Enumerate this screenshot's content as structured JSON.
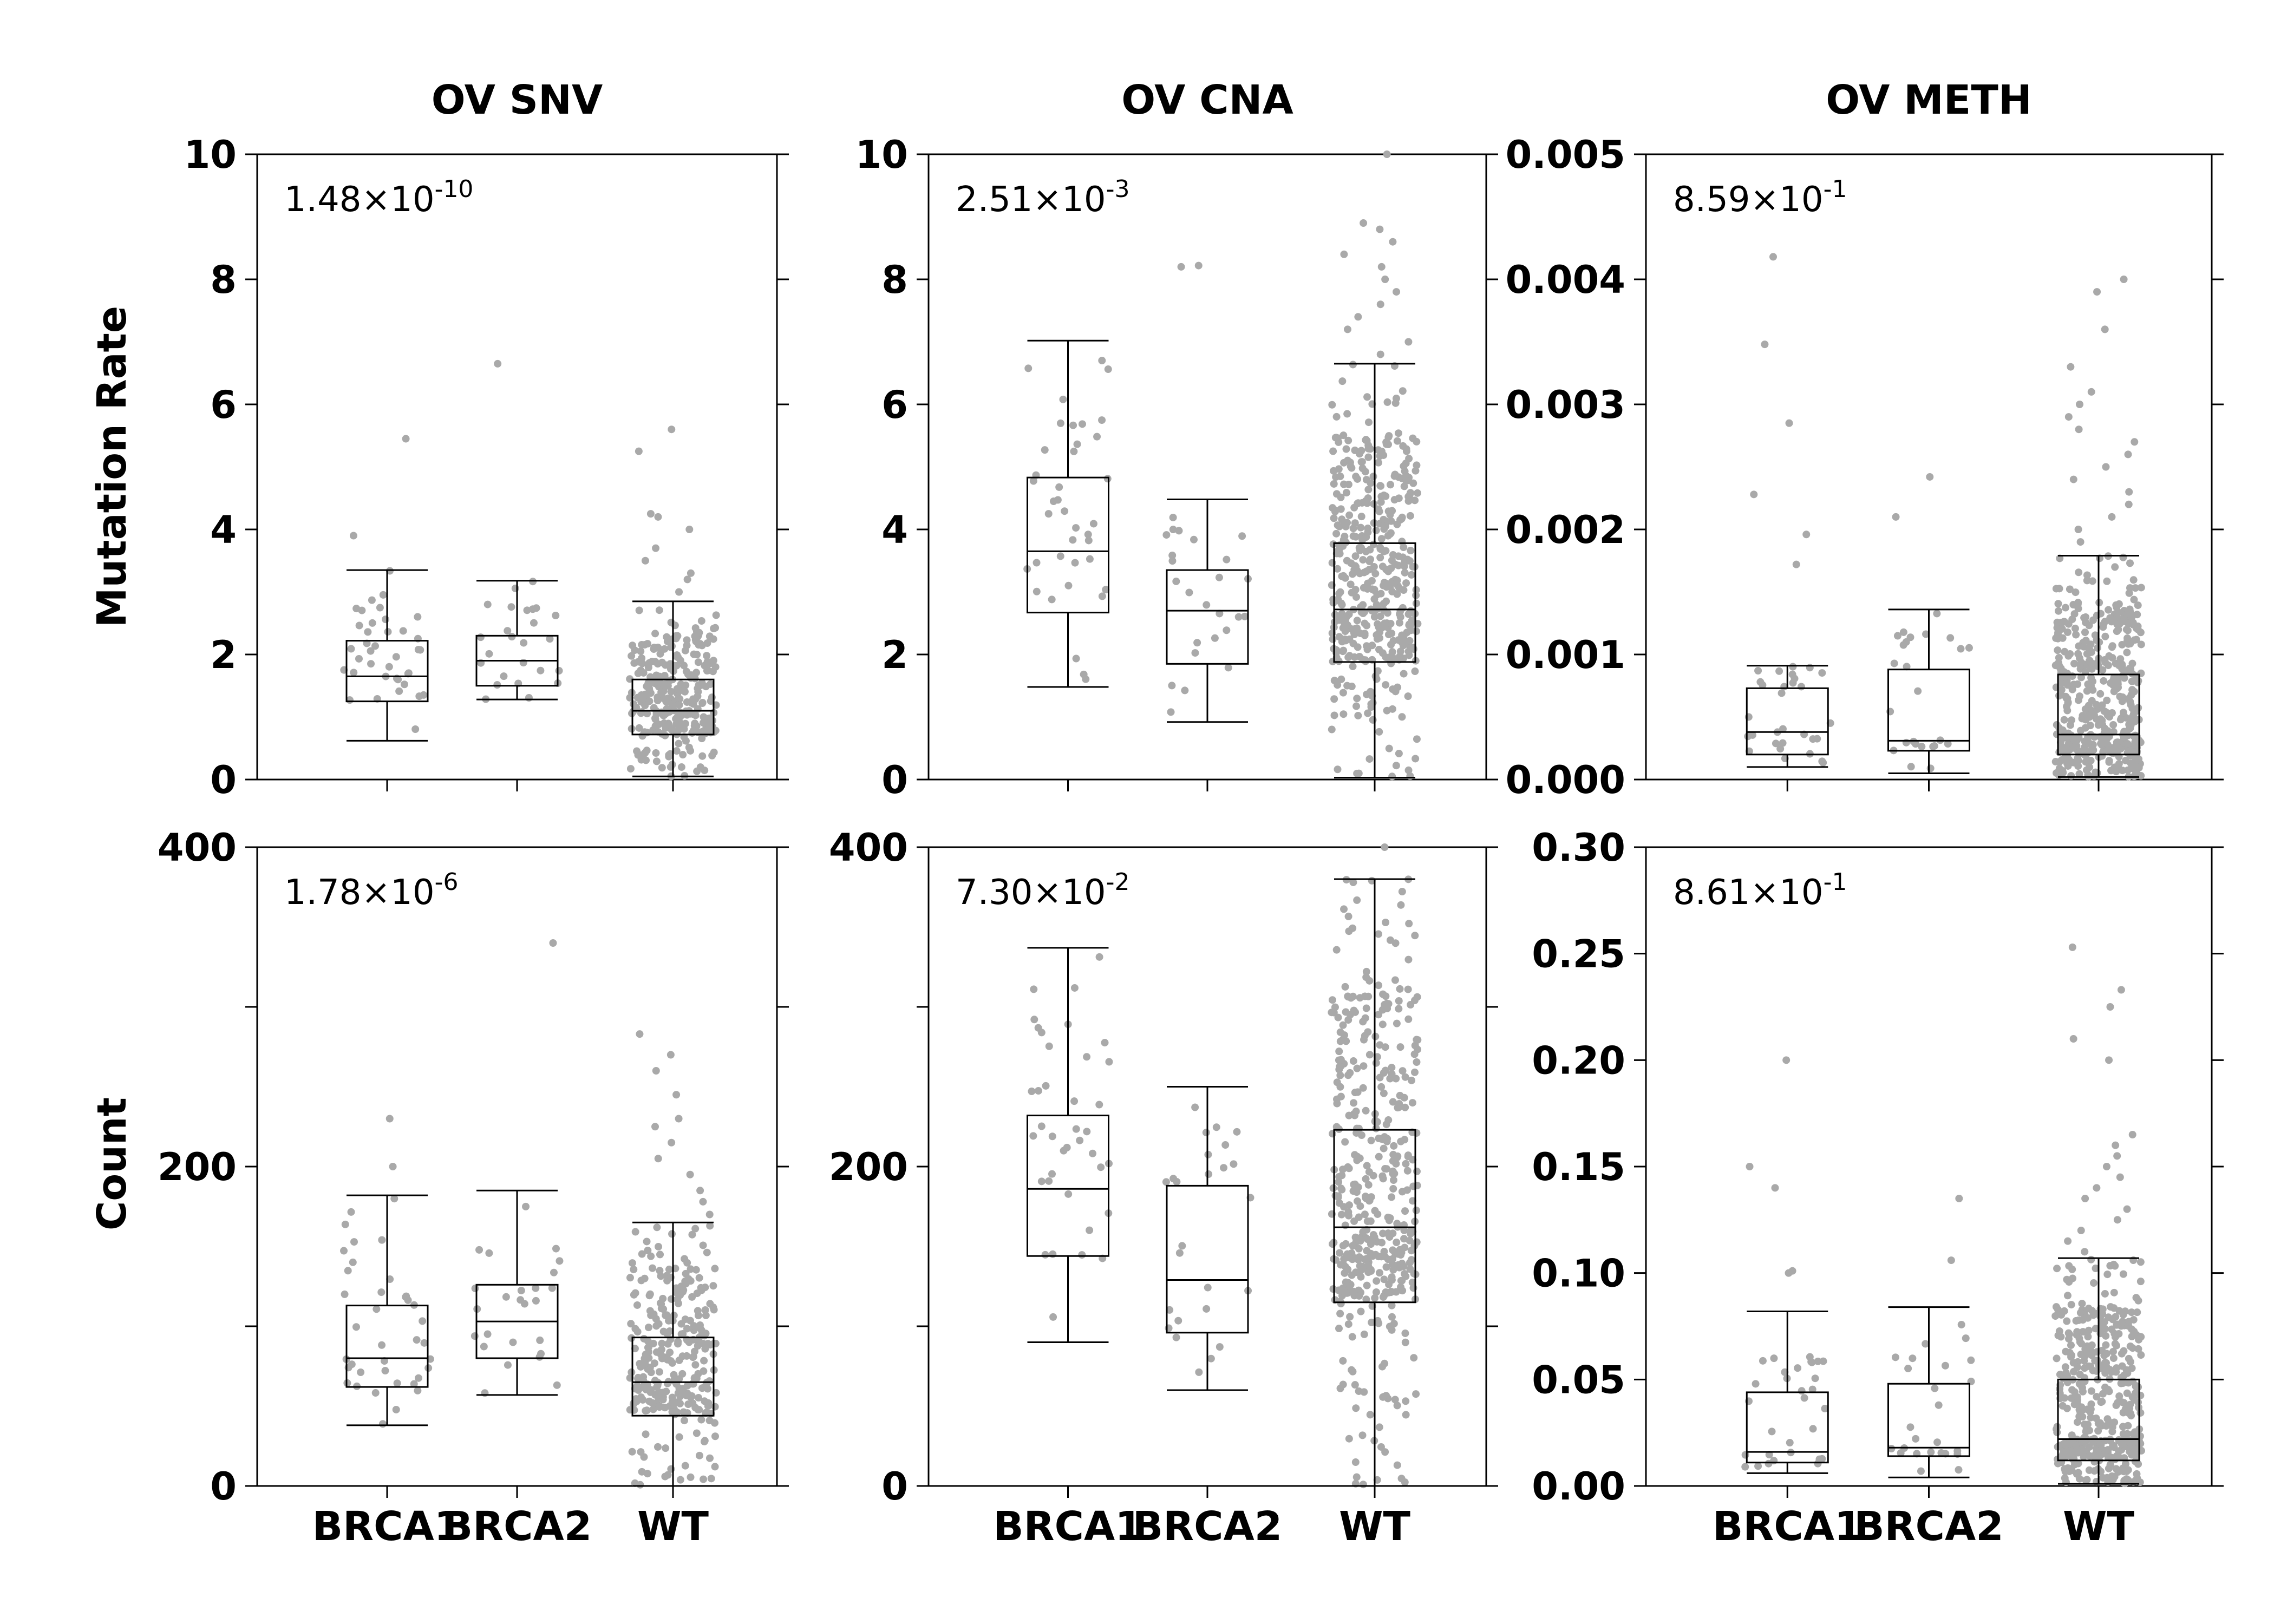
{
  "row_labels": [
    "Mutation Rate",
    "Count"
  ],
  "chart_data": [
    {
      "type": "box",
      "title": "OV SNV",
      "ylabel": "Mutation Rate",
      "annotation": "1.48×10-10",
      "pvalue": {
        "mantissa": "1.48",
        "exponent": "-10"
      },
      "ylim": [
        0,
        10
      ],
      "yticks": [
        "0",
        "2",
        "4",
        "6",
        "8",
        "10"
      ],
      "show_xticklabels": false,
      "categories": [
        "BRCA1",
        "BRCA2",
        "WT"
      ],
      "series": [
        {
          "category": "BRCA1",
          "whisker_low": 0.62,
          "q1": 1.25,
          "median": 1.65,
          "q3": 2.22,
          "whisker_high": 3.35,
          "n": 38,
          "outliers": [
            3.9,
            5.45
          ]
        },
        {
          "category": "BRCA2",
          "whisker_low": 1.28,
          "q1": 1.5,
          "median": 1.9,
          "q3": 2.3,
          "whisker_high": 3.18,
          "n": 25,
          "outliers": [
            6.65
          ]
        },
        {
          "category": "WT",
          "whisker_low": 0.05,
          "q1": 0.72,
          "median": 1.1,
          "q3": 1.6,
          "whisker_high": 2.85,
          "n": 300,
          "outliers": [
            3.0,
            3.2,
            3.3,
            3.5,
            3.7,
            4.0,
            4.2,
            4.25,
            5.25,
            5.6
          ]
        }
      ]
    },
    {
      "type": "box",
      "title": "OV CNA",
      "ylabel": "",
      "annotation": "2.51×10-3",
      "pvalue": {
        "mantissa": "2.51",
        "exponent": "-3"
      },
      "ylim": [
        0,
        10
      ],
      "yticks": [
        "0",
        "2",
        "4",
        "6",
        "8",
        "10"
      ],
      "show_xticklabels": false,
      "categories": [
        "BRCA1",
        "BRCA2",
        "WT"
      ],
      "series": [
        {
          "category": "BRCA1",
          "whisker_low": 1.48,
          "q1": 2.67,
          "median": 3.65,
          "q3": 4.83,
          "whisker_high": 7.02,
          "n": 38,
          "outliers": []
        },
        {
          "category": "BRCA2",
          "whisker_low": 0.92,
          "q1": 1.85,
          "median": 2.7,
          "q3": 3.35,
          "whisker_high": 4.48,
          "n": 25,
          "outliers": [
            8.2,
            8.22
          ]
        },
        {
          "category": "WT",
          "whisker_low": 0.03,
          "q1": 1.88,
          "median": 2.72,
          "q3": 3.78,
          "whisker_high": 6.65,
          "n": 450,
          "outliers": [
            6.8,
            7.0,
            7.2,
            7.4,
            7.6,
            7.8,
            8.0,
            8.2,
            8.4,
            8.6,
            8.8,
            8.9,
            10.0
          ]
        }
      ]
    },
    {
      "type": "box",
      "title": "OV METH",
      "ylabel": "",
      "annotation": "8.59×10-1",
      "pvalue": {
        "mantissa": "8.59",
        "exponent": "-1"
      },
      "ylim": [
        0,
        0.005
      ],
      "yticks": [
        "0.000",
        "0.001",
        "0.002",
        "0.003",
        "0.004",
        "0.005"
      ],
      "show_xticklabels": false,
      "categories": [
        "BRCA1",
        "BRCA2",
        "WT"
      ],
      "series": [
        {
          "category": "BRCA1",
          "whisker_low": 0.0001,
          "q1": 0.0002,
          "median": 0.00038,
          "q3": 0.00073,
          "whisker_high": 0.00091,
          "n": 30,
          "outliers": [
            0.00172,
            0.00196,
            0.00228,
            0.00285,
            0.00348,
            0.00418
          ]
        },
        {
          "category": "BRCA2",
          "whisker_low": 5e-05,
          "q1": 0.00023,
          "median": 0.00031,
          "q3": 0.00088,
          "whisker_high": 0.00136,
          "n": 25,
          "outliers": [
            0.0021,
            0.00242
          ]
        },
        {
          "category": "WT",
          "whisker_low": 2e-05,
          "q1": 0.0002,
          "median": 0.00036,
          "q3": 0.00084,
          "whisker_high": 0.00179,
          "n": 450,
          "outliers": [
            0.0019,
            0.002,
            0.0021,
            0.0022,
            0.0023,
            0.0024,
            0.0025,
            0.0026,
            0.0027,
            0.0028,
            0.0029,
            0.003,
            0.0031,
            0.0033,
            0.0036,
            0.0039,
            0.004
          ]
        }
      ]
    },
    {
      "type": "box",
      "title": "",
      "ylabel": "Count",
      "annotation": "1.78×10-6",
      "pvalue": {
        "mantissa": "1.78",
        "exponent": "-6"
      },
      "ylim": [
        0,
        400
      ],
      "yticks": [
        "0",
        "",
        "200",
        "",
        "400"
      ],
      "show_xticklabels": true,
      "categories": [
        "BRCA1",
        "BRCA2",
        "WT"
      ],
      "series": [
        {
          "category": "BRCA1",
          "whisker_low": 38,
          "q1": 62,
          "median": 80,
          "q3": 113,
          "whisker_high": 182,
          "n": 38,
          "outliers": [
            200,
            230
          ]
        },
        {
          "category": "BRCA2",
          "whisker_low": 57,
          "q1": 80,
          "median": 103,
          "q3": 126,
          "whisker_high": 185,
          "n": 25,
          "outliers": [
            340
          ]
        },
        {
          "category": "WT",
          "whisker_low": 0,
          "q1": 44,
          "median": 65,
          "q3": 93,
          "whisker_high": 165,
          "n": 300,
          "outliers": [
            170,
            178,
            185,
            195,
            205,
            215,
            225,
            230,
            245,
            260,
            270,
            283
          ]
        }
      ]
    },
    {
      "type": "box",
      "title": "",
      "ylabel": "",
      "annotation": "7.30×10-2",
      "pvalue": {
        "mantissa": "7.30",
        "exponent": "-2"
      },
      "ylim": [
        0,
        400
      ],
      "yticks": [
        "0",
        "",
        "200",
        "",
        "400"
      ],
      "show_xticklabels": true,
      "categories": [
        "BRCA1",
        "BRCA2",
        "WT"
      ],
      "series": [
        {
          "category": "BRCA1",
          "whisker_low": 90,
          "q1": 144,
          "median": 186,
          "q3": 232,
          "whisker_high": 337,
          "n": 38,
          "outliers": []
        },
        {
          "category": "BRCA2",
          "whisker_low": 60,
          "q1": 96,
          "median": 129,
          "q3": 188,
          "whisker_high": 250,
          "n": 25,
          "outliers": []
        },
        {
          "category": "WT",
          "whisker_low": 0,
          "q1": 115,
          "median": 162,
          "q3": 223,
          "whisker_high": 380,
          "n": 450,
          "outliers": [
            400
          ]
        }
      ]
    },
    {
      "type": "box",
      "title": "",
      "ylabel": "",
      "annotation": "8.61×10-1",
      "pvalue": {
        "mantissa": "8.61",
        "exponent": "-1"
      },
      "ylim": [
        0,
        0.3
      ],
      "yticks": [
        "0.00",
        "0.05",
        "0.10",
        "0.15",
        "0.20",
        "0.25",
        "0.30"
      ],
      "show_xticklabels": true,
      "categories": [
        "BRCA1",
        "BRCA2",
        "WT"
      ],
      "series": [
        {
          "category": "BRCA1",
          "whisker_low": 0.006,
          "q1": 0.011,
          "median": 0.016,
          "q3": 0.044,
          "whisker_high": 0.082,
          "n": 30,
          "outliers": [
            0.1,
            0.101,
            0.14,
            0.15,
            0.2
          ]
        },
        {
          "category": "BRCA2",
          "whisker_low": 0.004,
          "q1": 0.014,
          "median": 0.018,
          "q3": 0.048,
          "whisker_high": 0.084,
          "n": 25,
          "outliers": [
            0.106,
            0.135
          ]
        },
        {
          "category": "WT",
          "whisker_low": 0.001,
          "q1": 0.012,
          "median": 0.022,
          "q3": 0.05,
          "whisker_high": 0.107,
          "n": 450,
          "outliers": [
            0.11,
            0.115,
            0.12,
            0.125,
            0.13,
            0.135,
            0.14,
            0.145,
            0.15,
            0.155,
            0.16,
            0.165,
            0.2,
            0.21,
            0.225,
            0.233,
            0.253
          ]
        }
      ]
    }
  ]
}
